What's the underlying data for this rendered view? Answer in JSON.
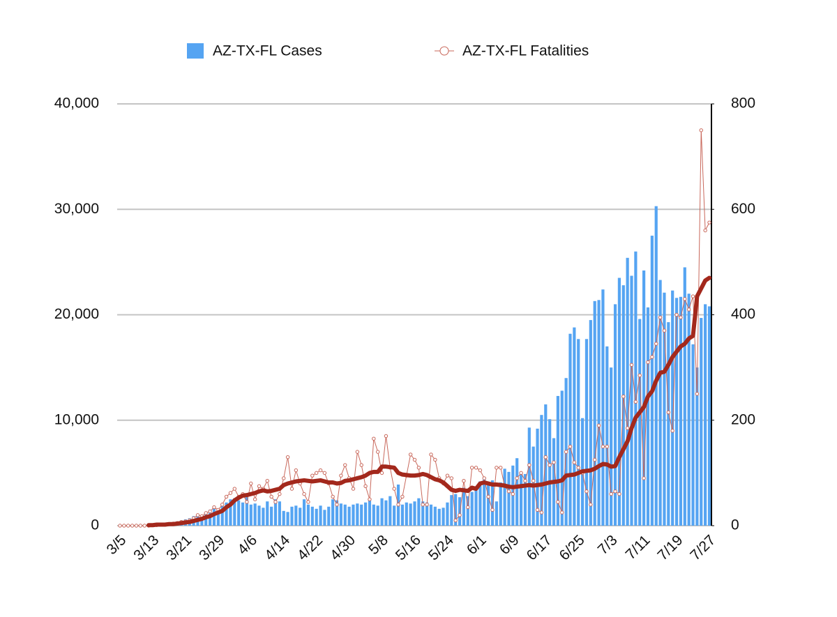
{
  "chart_data": {
    "type": "combo",
    "categories": [
      "3/5",
      null,
      null,
      null,
      null,
      null,
      null,
      null,
      "3/13",
      null,
      null,
      null,
      null,
      null,
      null,
      null,
      "3/21",
      null,
      null,
      null,
      null,
      null,
      null,
      null,
      "3/29",
      null,
      null,
      null,
      null,
      null,
      null,
      null,
      "4/6",
      null,
      null,
      null,
      null,
      null,
      null,
      null,
      "4/14",
      null,
      null,
      null,
      null,
      null,
      null,
      null,
      "4/22",
      null,
      null,
      null,
      null,
      null,
      null,
      null,
      "4/30",
      null,
      null,
      null,
      null,
      null,
      null,
      null,
      "5/8",
      null,
      null,
      null,
      null,
      null,
      null,
      null,
      "5/16",
      null,
      null,
      null,
      null,
      null,
      null,
      null,
      "5/24",
      null,
      null,
      null,
      null,
      null,
      null,
      null,
      "6/1",
      null,
      null,
      null,
      null,
      null,
      null,
      null,
      "6/9",
      null,
      null,
      null,
      null,
      null,
      null,
      null,
      "6/17",
      null,
      null,
      null,
      null,
      null,
      null,
      null,
      "6/25",
      null,
      null,
      null,
      null,
      null,
      null,
      null,
      "7/3",
      null,
      null,
      null,
      null,
      null,
      null,
      null,
      "7/11",
      null,
      null,
      null,
      null,
      null,
      null,
      null,
      "7/19",
      null,
      null,
      null,
      null,
      null,
      null,
      null,
      "7/27"
    ],
    "series": [
      {
        "name": "AZ-TX-FL Cases",
        "type": "bar",
        "color": "#55a4f2",
        "values": [
          5,
          5,
          10,
          10,
          20,
          30,
          40,
          60,
          80,
          100,
          150,
          200,
          250,
          300,
          400,
          500,
          600,
          700,
          900,
          1100,
          1000,
          1300,
          1500,
          1800,
          1600,
          1900,
          2200,
          2500,
          2600,
          2400,
          2200,
          2700,
          2000,
          2100,
          1900,
          1700,
          2300,
          1800,
          2500,
          2300,
          1400,
          1300,
          1800,
          1900,
          1700,
          2500,
          2000,
          1800,
          1600,
          1900,
          1500,
          1800,
          2500,
          2400,
          2100,
          2000,
          1800,
          2000,
          2100,
          2000,
          2200,
          2500,
          2000,
          1900,
          2600,
          2400,
          2800,
          1900,
          3900,
          2000,
          2200,
          2100,
          2300,
          2600,
          2300,
          2200,
          2000,
          1800,
          1600,
          1700,
          2200,
          2900,
          3000,
          2700,
          3600,
          2800,
          3200,
          3600,
          4200,
          4500,
          4100,
          4300,
          2300,
          4100,
          5400,
          5100,
          5700,
          6400,
          5100,
          4900,
          9300,
          7500,
          9200,
          10500,
          11500,
          10100,
          8300,
          12300,
          12800,
          14000,
          18200,
          18800,
          17700,
          10200,
          17700,
          19500,
          21300,
          21400,
          22400,
          17000,
          15000,
          21000,
          23500,
          22800,
          25400,
          23700,
          26000,
          19600,
          24200,
          20700,
          27500,
          30300,
          23300,
          22100,
          19300,
          22300,
          21600,
          21700,
          24500,
          22000,
          17200,
          15000,
          19700,
          21000,
          20800
        ]
      },
      {
        "name": "AZ-TX-FL Fatalities",
        "type": "line",
        "marker": "circle",
        "axis": "y2",
        "color": "#c8675a",
        "values": [
          0,
          0,
          0,
          0,
          0,
          0,
          0,
          0,
          1,
          1,
          2,
          2,
          3,
          4,
          5,
          7,
          8,
          10,
          14,
          20,
          18,
          24,
          27,
          35,
          30,
          40,
          55,
          62,
          70,
          55,
          60,
          45,
          80,
          50,
          75,
          70,
          85,
          55,
          45,
          60,
          90,
          130,
          70,
          105,
          80,
          60,
          45,
          95,
          100,
          105,
          100,
          80,
          55,
          40,
          95,
          115,
          90,
          70,
          140,
          115,
          75,
          50,
          165,
          140,
          100,
          170,
          110,
          70,
          40,
          55,
          95,
          135,
          125,
          110,
          40,
          40,
          135,
          125,
          90,
          80,
          95,
          90,
          10,
          20,
          85,
          35,
          110,
          110,
          105,
          90,
          55,
          30,
          110,
          110,
          75,
          65,
          60,
          90,
          100,
          85,
          115,
          85,
          30,
          25,
          130,
          115,
          120,
          45,
          25,
          140,
          150,
          120,
          110,
          100,
          65,
          40,
          125,
          190,
          150,
          150,
          60,
          65,
          60,
          245,
          185,
          305,
          235,
          285,
          90,
          310,
          320,
          345,
          395,
          370,
          215,
          180,
          400,
          395,
          430,
          410,
          435,
          250,
          750,
          560,
          575
        ]
      },
      {
        "type": "line",
        "axis": "y2",
        "color": "#a3281c",
        "values": [
          null,
          null,
          null,
          null,
          null,
          null,
          null,
          1,
          1,
          2,
          2,
          2,
          3,
          3,
          4,
          5,
          6,
          7,
          9,
          11,
          13,
          16,
          18,
          22,
          25,
          28,
          35,
          40,
          48,
          53,
          57,
          58,
          60,
          62,
          65,
          67,
          65,
          66,
          68,
          70,
          77,
          80,
          82,
          84,
          85,
          86,
          85,
          84,
          85,
          86,
          84,
          82,
          82,
          80,
          81,
          85,
          86,
          88,
          90,
          92,
          95,
          100,
          102,
          102,
          112,
          112,
          111,
          110,
          100,
          97,
          96,
          95,
          95,
          96,
          98,
          96,
          92,
          88,
          86,
          82,
          75,
          68,
          66,
          68,
          67,
          66,
          72,
          70,
          80,
          82,
          80,
          78,
          78,
          77,
          76,
          74,
          73,
          74,
          75,
          76,
          77,
          76,
          77,
          78,
          80,
          82,
          83,
          84,
          86,
          95,
          96,
          97,
          100,
          103,
          104,
          105,
          108,
          113,
          117,
          116,
          112,
          113,
          130,
          145,
          160,
          185,
          205,
          215,
          225,
          245,
          255,
          275,
          290,
          292,
          305,
          320,
          330,
          340,
          345,
          355,
          360,
          435,
          450,
          465,
          470
        ]
      }
    ],
    "ylim": [
      0,
      40000
    ],
    "yticks": [
      0,
      {
        "value": 10000,
        "label": "10,000"
      },
      {
        "value": 20000,
        "label": "20,000"
      },
      {
        "value": 30000,
        "label": "30,000"
      },
      {
        "value": 40000,
        "label": "40,000"
      }
    ],
    "y2lim": [
      0,
      800
    ],
    "y2ticks": [
      0,
      200,
      400,
      600,
      800
    ],
    "grid": true,
    "legend": "top"
  }
}
